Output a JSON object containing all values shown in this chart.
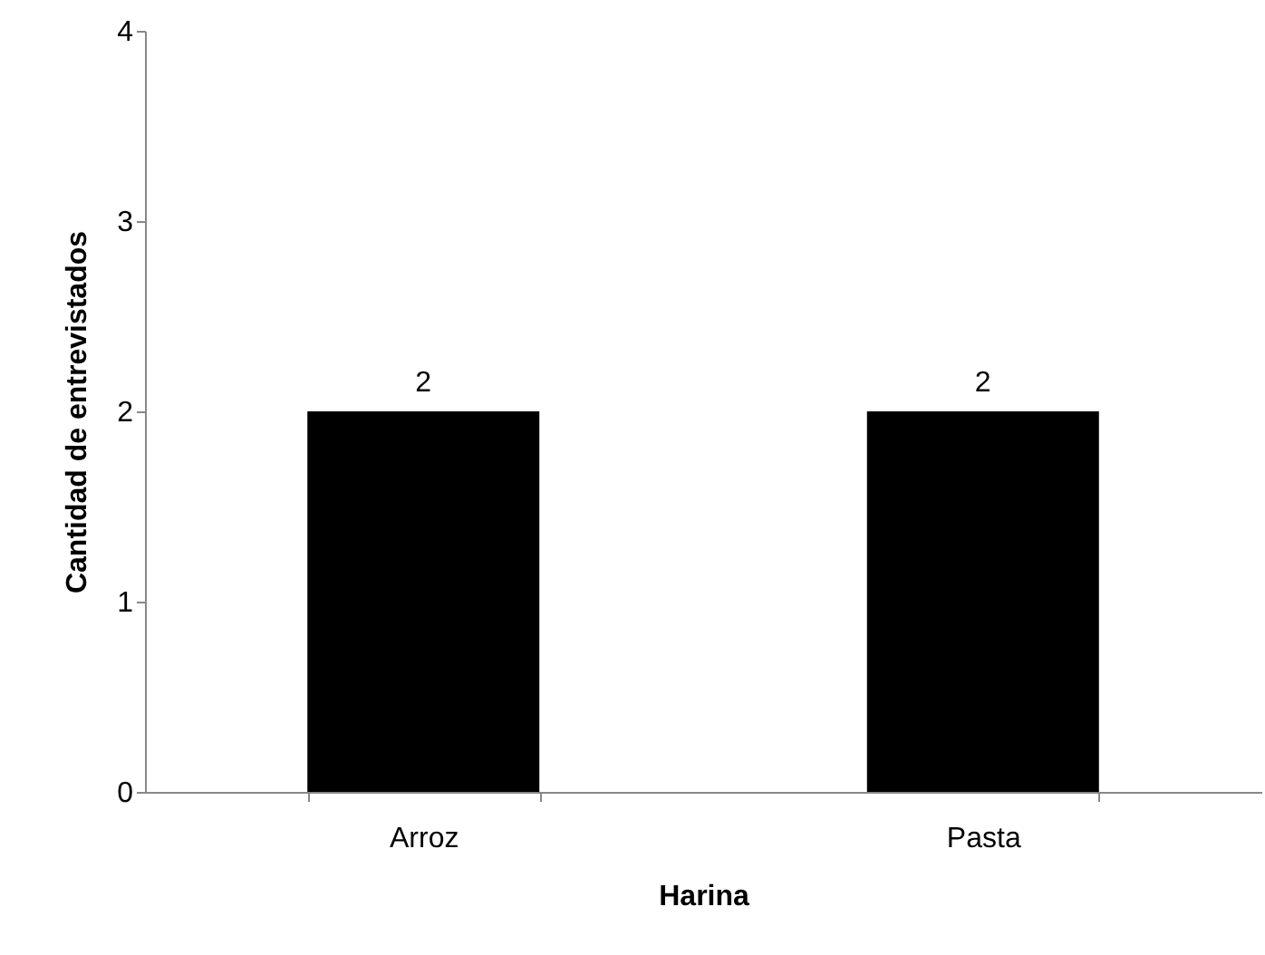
{
  "chart_data": {
    "type": "bar",
    "xlabel": "Harina",
    "ylabel": "Cantidad de entrevistados",
    "categories": [
      "Arroz",
      "Pasta"
    ],
    "values": [
      2,
      2
    ],
    "color": "#000000",
    "ylim": [
      0,
      4
    ],
    "yticks": [
      0,
      1,
      2,
      3,
      4
    ],
    "grid": false,
    "data_labels": true
  }
}
